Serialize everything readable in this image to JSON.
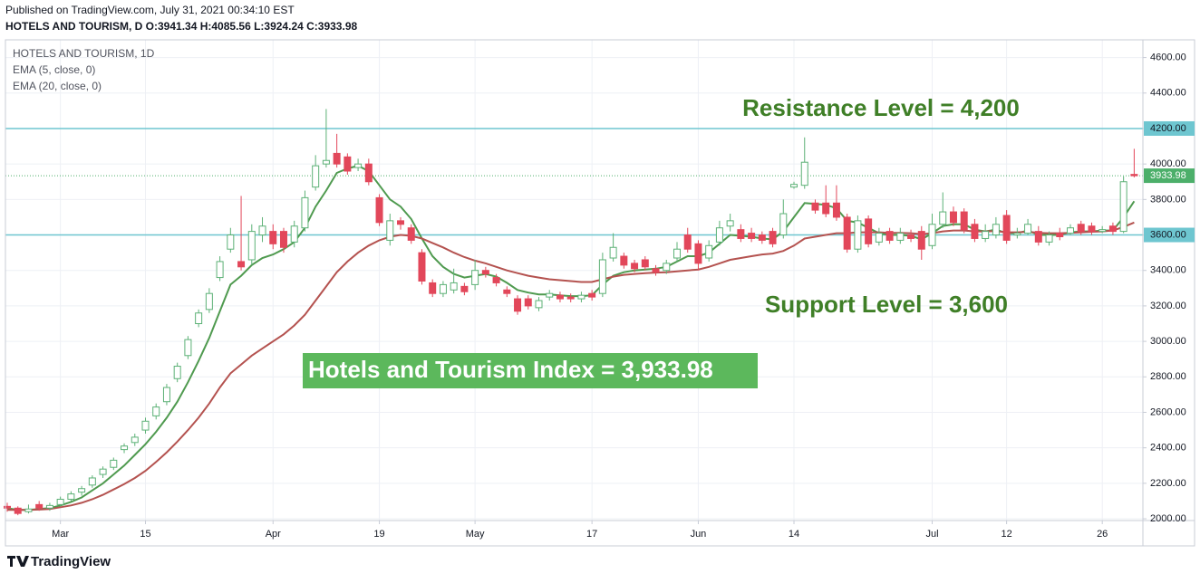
{
  "header": {
    "published": "Published on TradingView.com, July 31, 2021 00:34:10 EST",
    "symbol_line": "HOTELS AND TOURISM, D O:3941.34 H:4085.56 L:3924.24 C:3933.98"
  },
  "footer": {
    "brand": "TradingView"
  },
  "chart_data": {
    "type": "candlestick",
    "legend": [
      "HOTELS AND TOURISM, 1D",
      "EMA (5, close, 0)",
      "EMA (20, close, 0)"
    ],
    "annotations": {
      "resistance": "Resistance Level = 4,200",
      "support": "Support Level = 3,600",
      "index": "Hotels and Tourism Index = 3,933.98"
    },
    "up_color": "#5cb176",
    "down_color": "#e2475a",
    "ylim": [
      1990,
      4700
    ],
    "yticks": [
      {
        "value": 2000,
        "label": "2000.00"
      },
      {
        "value": 2200,
        "label": "2200.00"
      },
      {
        "value": 2400,
        "label": "2400.00"
      },
      {
        "value": 2600,
        "label": "2600.00"
      },
      {
        "value": 2800,
        "label": "2800.00"
      },
      {
        "value": 3000,
        "label": "3000.00"
      },
      {
        "value": 3200,
        "label": "3200.00"
      },
      {
        "value": 3400,
        "label": "3400.00"
      },
      {
        "value": 3600,
        "label": "3600.00"
      },
      {
        "value": 3800,
        "label": "3800.00"
      },
      {
        "value": 4000,
        "label": "4000.00"
      },
      {
        "value": 4200,
        "label": "4200.00"
      },
      {
        "value": 4400,
        "label": "4400.00"
      },
      {
        "value": 4600,
        "label": "4600.00"
      }
    ],
    "xticks": [
      {
        "value": 5,
        "label": "Mar"
      },
      {
        "value": 13,
        "label": "15"
      },
      {
        "value": 25,
        "label": "Apr"
      },
      {
        "value": 35,
        "label": "19"
      },
      {
        "value": 44,
        "label": "May"
      },
      {
        "value": 55,
        "label": "17"
      },
      {
        "value": 65,
        "label": "Jun"
      },
      {
        "value": 74,
        "label": "14"
      },
      {
        "value": 87,
        "label": "Jul"
      },
      {
        "value": 94,
        "label": "12"
      },
      {
        "value": 103,
        "label": "26"
      }
    ],
    "grid": true,
    "hlines": [
      {
        "value": 4200,
        "label": "4200.00",
        "color": "#6ec6d0"
      },
      {
        "value": 3600,
        "label": "3600.00",
        "color": "#6ec6d0"
      }
    ],
    "last_price": {
      "value": 3933.98,
      "label": "3933.98",
      "color": "#4caf6a"
    },
    "open": [
      2070,
      2060,
      2040,
      2080,
      2060,
      2080,
      2110,
      2150,
      2190,
      2250,
      2290,
      2390,
      2430,
      2500,
      2580,
      2660,
      2790,
      2920,
      3100,
      3180,
      3360,
      3520,
      3450,
      3460,
      3600,
      3620,
      3620,
      3560,
      3640,
      3870,
      4000,
      4060,
      4040,
      3980,
      4000,
      3810,
      3570,
      3680,
      3640,
      3500,
      3330,
      3270,
      3290,
      3310,
      3320,
      3400,
      3360,
      3290,
      3240,
      3240,
      3190,
      3250,
      3260,
      3250,
      3240,
      3270,
      3270,
      3470,
      3480,
      3440,
      3460,
      3410,
      3400,
      3470,
      3600,
      3550,
      3470,
      3560,
      3650,
      3630,
      3610,
      3600,
      3620,
      3600,
      3870,
      3880,
      3780,
      3780,
      3780,
      3700,
      3520,
      3690,
      3560,
      3620,
      3570,
      3600,
      3620,
      3540,
      3660,
      3730,
      3730,
      3660,
      3580,
      3600,
      3710,
      3600,
      3610,
      3620,
      3560,
      3610,
      3610,
      3660,
      3650,
      3620,
      3650,
      3620,
      3941.34
    ],
    "high": [
      2090,
      2070,
      2080,
      2100,
      2090,
      2125,
      2155,
      2185,
      2245,
      2295,
      2345,
      2425,
      2480,
      2570,
      2650,
      2760,
      2880,
      3030,
      3180,
      3300,
      3480,
      3640,
      3820,
      3660,
      3700,
      3660,
      3640,
      3680,
      3850,
      4050,
      4310,
      4170,
      4060,
      4030,
      4030,
      3830,
      3720,
      3700,
      3660,
      3520,
      3350,
      3340,
      3410,
      3330,
      3460,
      3420,
      3380,
      3310,
      3260,
      3260,
      3250,
      3290,
      3280,
      3270,
      3280,
      3290,
      3500,
      3610,
      3500,
      3460,
      3480,
      3430,
      3460,
      3560,
      3640,
      3570,
      3570,
      3680,
      3720,
      3660,
      3640,
      3620,
      3640,
      3800,
      3900,
      4150,
      3800,
      3880,
      3880,
      3720,
      3710,
      3710,
      3640,
      3640,
      3640,
      3630,
      3650,
      3720,
      3840,
      3760,
      3750,
      3690,
      3660,
      3700,
      3740,
      3640,
      3690,
      3650,
      3620,
      3640,
      3660,
      3680,
      3670,
      3650,
      3670,
      3930,
      4085.56
    ],
    "low": [
      2040,
      2020,
      2030,
      2045,
      2045,
      2070,
      2100,
      2130,
      2175,
      2230,
      2275,
      2370,
      2410,
      2480,
      2560,
      2640,
      2770,
      2900,
      3080,
      3160,
      3340,
      3500,
      3400,
      3430,
      3560,
      3520,
      3500,
      3530,
      3620,
      3850,
      3980,
      3980,
      3940,
      3960,
      3880,
      3650,
      3540,
      3630,
      3550,
      3320,
      3250,
      3250,
      3270,
      3260,
      3290,
      3360,
      3310,
      3250,
      3150,
      3180,
      3170,
      3230,
      3220,
      3220,
      3220,
      3230,
      3250,
      3450,
      3410,
      3390,
      3400,
      3370,
      3380,
      3450,
      3500,
      3400,
      3450,
      3540,
      3620,
      3560,
      3560,
      3550,
      3530,
      3580,
      3860,
      3860,
      3720,
      3700,
      3680,
      3500,
      3500,
      3530,
      3540,
      3550,
      3550,
      3560,
      3460,
      3520,
      3640,
      3650,
      3610,
      3560,
      3560,
      3580,
      3550,
      3580,
      3600,
      3540,
      3540,
      3570,
      3600,
      3600,
      3600,
      3610,
      3600,
      3610,
      3924.24
    ],
    "close": [
      2060,
      2030,
      2055,
      2060,
      2075,
      2110,
      2140,
      2170,
      2230,
      2280,
      2330,
      2410,
      2460,
      2550,
      2630,
      2740,
      2860,
      3010,
      3160,
      3270,
      3450,
      3600,
      3420,
      3620,
      3650,
      3550,
      3530,
      3650,
      3810,
      3990,
      4020,
      4000,
      3960,
      4000,
      3900,
      3670,
      3680,
      3660,
      3570,
      3340,
      3270,
      3320,
      3330,
      3280,
      3400,
      3380,
      3330,
      3270,
      3170,
      3200,
      3230,
      3270,
      3240,
      3240,
      3260,
      3250,
      3460,
      3530,
      3430,
      3410,
      3420,
      3390,
      3440,
      3520,
      3520,
      3440,
      3540,
      3640,
      3680,
      3580,
      3580,
      3570,
      3550,
      3720,
      3885,
      4010,
      3740,
      3720,
      3700,
      3520,
      3680,
      3550,
      3610,
      3570,
      3610,
      3580,
      3520,
      3660,
      3730,
      3670,
      3630,
      3580,
      3620,
      3660,
      3570,
      3610,
      3660,
      3560,
      3600,
      3590,
      3640,
      3620,
      3620,
      3630,
      3620,
      3900,
      3933.98
    ],
    "series": [
      {
        "name": "EMA (5, close, 0)",
        "color": "#4f9a4f",
        "values": [
          2060,
          2050,
          2050,
          2055,
          2060,
          2075,
          2095,
          2120,
          2160,
          2200,
          2250,
          2300,
          2360,
          2420,
          2490,
          2570,
          2660,
          2770,
          2890,
          3020,
          3170,
          3320,
          3370,
          3430,
          3470,
          3490,
          3520,
          3560,
          3640,
          3760,
          3850,
          3950,
          3975,
          3990,
          3960,
          3880,
          3800,
          3760,
          3690,
          3580,
          3480,
          3420,
          3380,
          3360,
          3370,
          3380,
          3365,
          3330,
          3290,
          3275,
          3265,
          3265,
          3260,
          3255,
          3255,
          3260,
          3320,
          3370,
          3390,
          3400,
          3405,
          3410,
          3420,
          3450,
          3480,
          3480,
          3500,
          3550,
          3600,
          3595,
          3590,
          3580,
          3575,
          3620,
          3700,
          3780,
          3775,
          3770,
          3750,
          3680,
          3670,
          3640,
          3610,
          3600,
          3600,
          3595,
          3575,
          3610,
          3650,
          3660,
          3660,
          3630,
          3620,
          3630,
          3610,
          3610,
          3625,
          3600,
          3600,
          3600,
          3615,
          3620,
          3620,
          3625,
          3625,
          3700,
          3790
        ]
      },
      {
        "name": "EMA (20, close, 0)",
        "color": "#b4524f",
        "values": [
          2050,
          2050,
          2050,
          2052,
          2055,
          2065,
          2075,
          2090,
          2110,
          2135,
          2165,
          2195,
          2230,
          2270,
          2320,
          2375,
          2435,
          2500,
          2570,
          2650,
          2740,
          2820,
          2870,
          2920,
          2960,
          3000,
          3040,
          3090,
          3150,
          3230,
          3310,
          3390,
          3450,
          3500,
          3540,
          3570,
          3590,
          3600,
          3595,
          3580,
          3555,
          3530,
          3500,
          3475,
          3455,
          3440,
          3420,
          3400,
          3385,
          3370,
          3360,
          3350,
          3345,
          3340,
          3335,
          3335,
          3350,
          3365,
          3375,
          3380,
          3385,
          3388,
          3390,
          3395,
          3400,
          3405,
          3420,
          3440,
          3460,
          3470,
          3480,
          3490,
          3495,
          3510,
          3540,
          3580,
          3590,
          3600,
          3610,
          3610,
          3615,
          3615,
          3615,
          3612,
          3612,
          3610,
          3605,
          3610,
          3620,
          3625,
          3625,
          3620,
          3620,
          3622,
          3615,
          3615,
          3618,
          3612,
          3610,
          3610,
          3612,
          3615,
          3618,
          3620,
          3625,
          3645,
          3670
        ]
      }
    ]
  }
}
